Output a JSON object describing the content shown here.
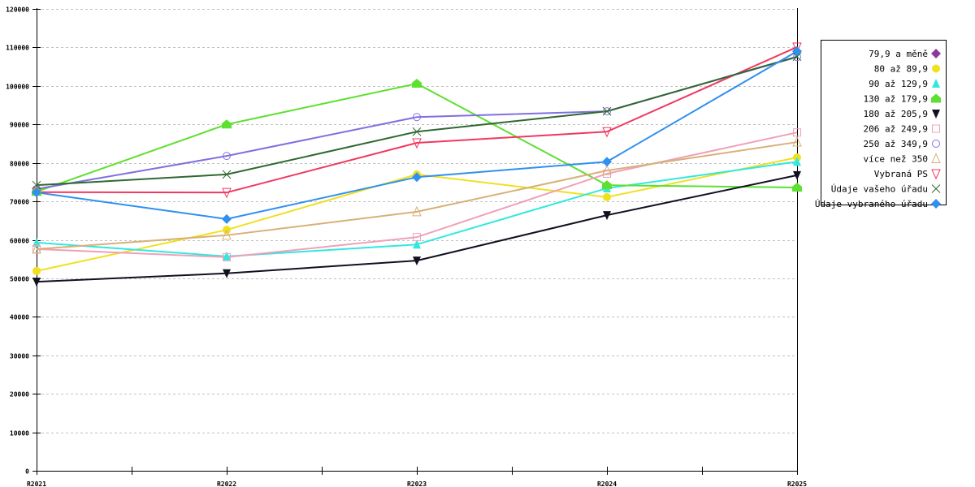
{
  "chart_data": {
    "type": "line",
    "title": "",
    "xlabel": "",
    "ylabel": "",
    "categories": [
      "R2021",
      "R2022",
      "R2023",
      "R2024",
      "R2025"
    ],
    "ylim": [
      0,
      120000
    ],
    "yticks": [
      0,
      10000,
      20000,
      30000,
      40000,
      50000,
      60000,
      70000,
      80000,
      90000,
      100000,
      110000,
      120000
    ],
    "grid": true,
    "legend_position": "right",
    "series": [
      {
        "name": "79,9 a měně",
        "color": "#8a3a9a",
        "marker": "diamond",
        "values": [
          null,
          null,
          null,
          null,
          null
        ]
      },
      {
        "name": "80 až 89,9",
        "color": "#f0e020",
        "marker": "circle",
        "values": [
          51900,
          62600,
          77000,
          71100,
          81400
        ]
      },
      {
        "name": "90 až 129,9",
        "color": "#30e8e0",
        "marker": "triangle",
        "values": [
          59300,
          55700,
          58800,
          73400,
          80300
        ]
      },
      {
        "name": "130 až 179,9",
        "color": "#5de030",
        "marker": "house",
        "values": [
          72500,
          90000,
          100600,
          74200,
          73600
        ]
      },
      {
        "name": "180 až 205,9",
        "color": "#101020",
        "marker": "triangle-down",
        "values": [
          49100,
          51300,
          54600,
          66400,
          76800
        ]
      },
      {
        "name": "206 až 249,9",
        "color": "#f0a0b8",
        "marker": "square-open",
        "values": [
          57600,
          55500,
          60700,
          77200,
          87900
        ]
      },
      {
        "name": "250 až 349,9",
        "color": "#8070e0",
        "marker": "circle-open",
        "values": [
          73200,
          81800,
          91900,
          93400,
          107500
        ]
      },
      {
        "name": "více než 350",
        "color": "#d8b078",
        "marker": "triangle-open",
        "values": [
          57600,
          61200,
          67300,
          78000,
          85400
        ]
      },
      {
        "name": "Vybraná PS",
        "color": "#f03860",
        "marker": "triangle-down-open",
        "values": [
          72400,
          72300,
          85200,
          88100,
          110100
        ]
      },
      {
        "name": "Údaje vašeho úřadu",
        "color": "#306830",
        "marker": "x",
        "values": [
          74200,
          77000,
          88100,
          93400,
          107600
        ]
      },
      {
        "name": "Údaje vybraného úřadu",
        "color": "#3090f0",
        "marker": "diamond",
        "values": [
          72300,
          65400,
          76300,
          80300,
          109000
        ]
      }
    ]
  }
}
